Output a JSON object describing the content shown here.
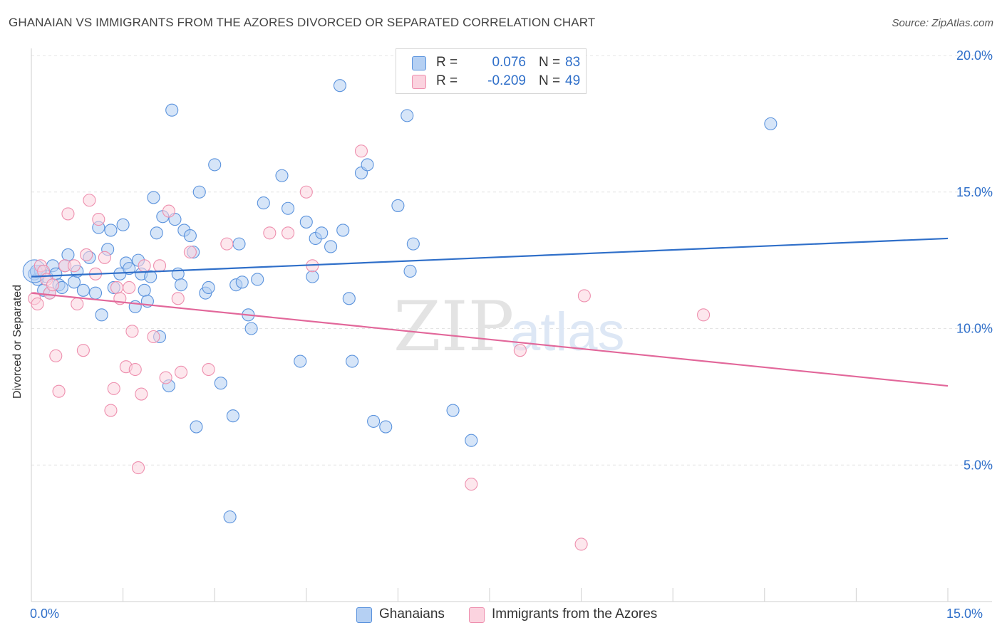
{
  "header": {
    "title": "GHANAIAN VS IMMIGRANTS FROM THE AZORES DIVORCED OR SEPARATED CORRELATION CHART",
    "source": "Source: ZipAtlas.com"
  },
  "watermark": {
    "zip": "ZIP",
    "atlas": "atlas"
  },
  "stats_legend": {
    "rows": [
      {
        "r_label": "R =",
        "r_value": "0.076",
        "n_label": "N =",
        "n_value": "83",
        "color": "#9cc1ee"
      },
      {
        "r_label": "R =",
        "r_value": "-0.209",
        "n_label": "N =",
        "n_value": "49",
        "color": "#f5b8cc"
      }
    ]
  },
  "bottom_legend": [
    {
      "label": "Ghanaians",
      "color": "#9cc1ee"
    },
    {
      "label": "Immigrants from the Azores",
      "color": "#f5b8cc"
    }
  ],
  "chart_data": {
    "type": "scatter",
    "title": "GHANAIAN VS IMMIGRANTS FROM THE AZORES DIVORCED OR SEPARATED CORRELATION CHART",
    "xlabel": "",
    "ylabel": "Divorced or Separated",
    "xlim": [
      0,
      15
    ],
    "ylim": [
      0,
      20
    ],
    "x_tick_labels": [
      "0.0%",
      "15.0%"
    ],
    "y_ticks": [
      5,
      10,
      15,
      20
    ],
    "y_tick_labels": [
      "5.0%",
      "10.0%",
      "15.0%",
      "20.0%"
    ],
    "grid": true,
    "legend_position": "top-center",
    "series": [
      {
        "name": "Ghanaians",
        "color": "#5b93dd",
        "fill": "#b5d0f3",
        "trend": {
          "x": [
            0,
            15
          ],
          "y": [
            11.9,
            13.3
          ],
          "color": "#2f6fc9"
        },
        "points": [
          [
            0.05,
            12.0
          ],
          [
            0.1,
            11.8
          ],
          [
            0.15,
            12.1
          ],
          [
            0.2,
            11.4
          ],
          [
            0.25,
            11.9
          ],
          [
            0.3,
            11.3
          ],
          [
            0.35,
            12.3
          ],
          [
            0.4,
            12.0
          ],
          [
            0.45,
            11.6
          ],
          [
            0.55,
            12.3
          ],
          [
            0.6,
            12.7
          ],
          [
            0.7,
            11.7
          ],
          [
            0.75,
            12.1
          ],
          [
            0.85,
            11.4
          ],
          [
            0.95,
            12.6
          ],
          [
            1.05,
            11.3
          ],
          [
            1.1,
            13.7
          ],
          [
            1.15,
            10.5
          ],
          [
            1.25,
            12.9
          ],
          [
            1.3,
            13.6
          ],
          [
            1.35,
            11.5
          ],
          [
            1.45,
            12.0
          ],
          [
            1.5,
            13.8
          ],
          [
            1.55,
            12.4
          ],
          [
            1.6,
            12.2
          ],
          [
            1.7,
            10.8
          ],
          [
            1.75,
            12.5
          ],
          [
            1.8,
            12.0
          ],
          [
            1.85,
            11.4
          ],
          [
            1.9,
            11.0
          ],
          [
            1.95,
            11.9
          ],
          [
            2.0,
            14.8
          ],
          [
            2.05,
            13.5
          ],
          [
            2.1,
            9.7
          ],
          [
            2.15,
            14.1
          ],
          [
            2.25,
            7.9
          ],
          [
            2.3,
            18.0
          ],
          [
            2.35,
            14.0
          ],
          [
            2.4,
            12.0
          ],
          [
            2.45,
            11.6
          ],
          [
            2.5,
            13.6
          ],
          [
            2.6,
            13.4
          ],
          [
            2.65,
            12.8
          ],
          [
            2.7,
            6.4
          ],
          [
            2.75,
            15.0
          ],
          [
            2.85,
            11.3
          ],
          [
            2.9,
            11.5
          ],
          [
            3.0,
            16.0
          ],
          [
            3.1,
            8.0
          ],
          [
            3.25,
            3.1
          ],
          [
            3.3,
            6.8
          ],
          [
            3.35,
            11.6
          ],
          [
            3.4,
            13.1
          ],
          [
            3.45,
            11.7
          ],
          [
            3.55,
            10.5
          ],
          [
            3.6,
            10.0
          ],
          [
            3.7,
            11.8
          ],
          [
            3.8,
            14.6
          ],
          [
            4.1,
            15.6
          ],
          [
            4.2,
            14.4
          ],
          [
            4.4,
            8.8
          ],
          [
            4.5,
            13.9
          ],
          [
            4.6,
            11.9
          ],
          [
            4.65,
            13.3
          ],
          [
            4.75,
            13.5
          ],
          [
            4.9,
            13.0
          ],
          [
            5.05,
            18.9
          ],
          [
            5.1,
            13.6
          ],
          [
            5.2,
            11.1
          ],
          [
            5.25,
            8.8
          ],
          [
            5.4,
            15.7
          ],
          [
            5.5,
            16.0
          ],
          [
            5.6,
            6.6
          ],
          [
            5.8,
            6.4
          ],
          [
            6.0,
            14.5
          ],
          [
            6.15,
            17.8
          ],
          [
            6.2,
            12.1
          ],
          [
            6.25,
            13.1
          ],
          [
            6.9,
            7.0
          ],
          [
            7.2,
            5.9
          ],
          [
            12.1,
            17.5
          ],
          [
            0.08,
            12.1
          ],
          [
            0.5,
            11.5
          ]
        ]
      },
      {
        "name": "Immigrants from the Azores",
        "color": "#ee8fae",
        "fill": "#fbd3df",
        "trend": {
          "x": [
            0,
            15
          ],
          "y": [
            11.3,
            7.9
          ],
          "color": "#e2679a"
        },
        "points": [
          [
            0.05,
            11.1
          ],
          [
            0.1,
            10.9
          ],
          [
            0.15,
            12.3
          ],
          [
            0.2,
            12.1
          ],
          [
            0.25,
            11.8
          ],
          [
            0.3,
            11.3
          ],
          [
            0.35,
            11.6
          ],
          [
            0.4,
            9.0
          ],
          [
            0.45,
            7.7
          ],
          [
            0.55,
            12.3
          ],
          [
            0.6,
            14.2
          ],
          [
            0.7,
            12.3
          ],
          [
            0.75,
            10.9
          ],
          [
            0.85,
            9.2
          ],
          [
            0.9,
            12.7
          ],
          [
            0.95,
            14.7
          ],
          [
            1.05,
            12.0
          ],
          [
            1.1,
            14.0
          ],
          [
            1.2,
            12.6
          ],
          [
            1.3,
            7.0
          ],
          [
            1.35,
            7.8
          ],
          [
            1.4,
            11.5
          ],
          [
            1.45,
            11.1
          ],
          [
            1.55,
            8.6
          ],
          [
            1.6,
            11.5
          ],
          [
            1.65,
            9.9
          ],
          [
            1.7,
            8.5
          ],
          [
            1.75,
            4.9
          ],
          [
            1.8,
            7.6
          ],
          [
            1.85,
            12.3
          ],
          [
            2.0,
            9.7
          ],
          [
            2.1,
            12.3
          ],
          [
            2.2,
            8.2
          ],
          [
            2.25,
            14.3
          ],
          [
            2.4,
            11.1
          ],
          [
            2.45,
            8.4
          ],
          [
            2.6,
            12.8
          ],
          [
            2.9,
            8.5
          ],
          [
            3.2,
            13.1
          ],
          [
            3.9,
            13.5
          ],
          [
            4.2,
            13.5
          ],
          [
            4.5,
            15.0
          ],
          [
            4.6,
            12.3
          ],
          [
            5.4,
            16.5
          ],
          [
            7.2,
            4.3
          ],
          [
            8.0,
            9.2
          ],
          [
            9.0,
            2.1
          ],
          [
            9.05,
            11.2
          ],
          [
            11.0,
            10.5
          ]
        ]
      }
    ]
  }
}
